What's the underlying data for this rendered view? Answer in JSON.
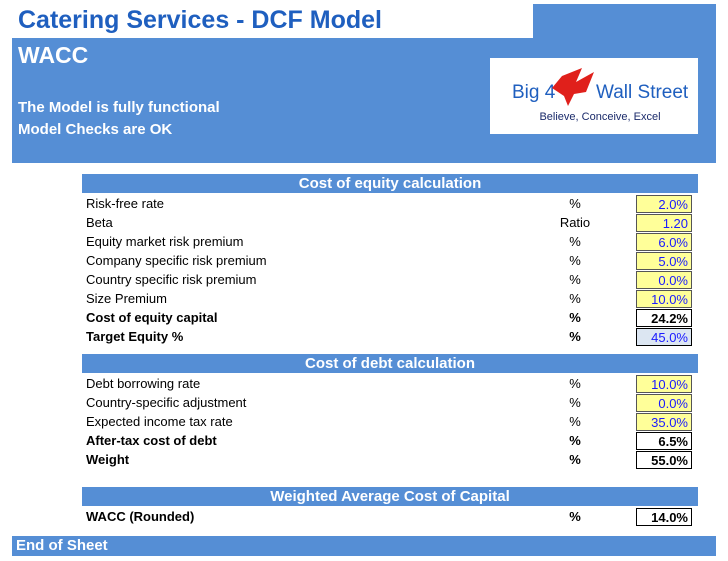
{
  "header": {
    "title": "Catering Services - DCF Model",
    "sheet": "WACC",
    "status": [
      "The Model is fully functional",
      "Model Checks are OK"
    ]
  },
  "logo": {
    "left": "Big 4",
    "right": "Wall Street",
    "tagline": "Believe, Conceive, Excel"
  },
  "sections": [
    {
      "title": "Cost of equity calculation",
      "rows": [
        {
          "label": "Risk-free rate",
          "unit": "%",
          "value": "2.0%"
        },
        {
          "label": "Beta",
          "unit": "Ratio",
          "value": "1.20"
        },
        {
          "label": "Equity market risk premium",
          "unit": "%",
          "value": "6.0%"
        },
        {
          "label": "Company specific risk premium",
          "unit": "%",
          "value": "5.0%"
        },
        {
          "label": "Country specific risk premium",
          "unit": "%",
          "value": "0.0%"
        },
        {
          "label": "Size Premium",
          "unit": "%",
          "value": "10.0%"
        },
        {
          "label": "Cost of equity capital",
          "unit": "%",
          "value": "24.2%"
        },
        {
          "label": "Target Equity %",
          "unit": "%",
          "value": "45.0%"
        }
      ]
    },
    {
      "title": "Cost of debt calculation",
      "rows": [
        {
          "label": "Debt borrowing rate",
          "unit": "%",
          "value": "10.0%"
        },
        {
          "label": "Country-specific adjustment",
          "unit": "%",
          "value": "0.0%"
        },
        {
          "label": "Expected income tax rate",
          "unit": "%",
          "value": "35.0%"
        },
        {
          "label": "After-tax cost of debt",
          "unit": "%",
          "value": "6.5%"
        },
        {
          "label": "Weight",
          "unit": "%",
          "value": "55.0%"
        }
      ]
    },
    {
      "title": "Weighted Average Cost of Capital",
      "rows": [
        {
          "label": "WACC (Rounded)",
          "unit": "%",
          "value": "14.0%"
        }
      ]
    }
  ],
  "footer": "End of Sheet"
}
